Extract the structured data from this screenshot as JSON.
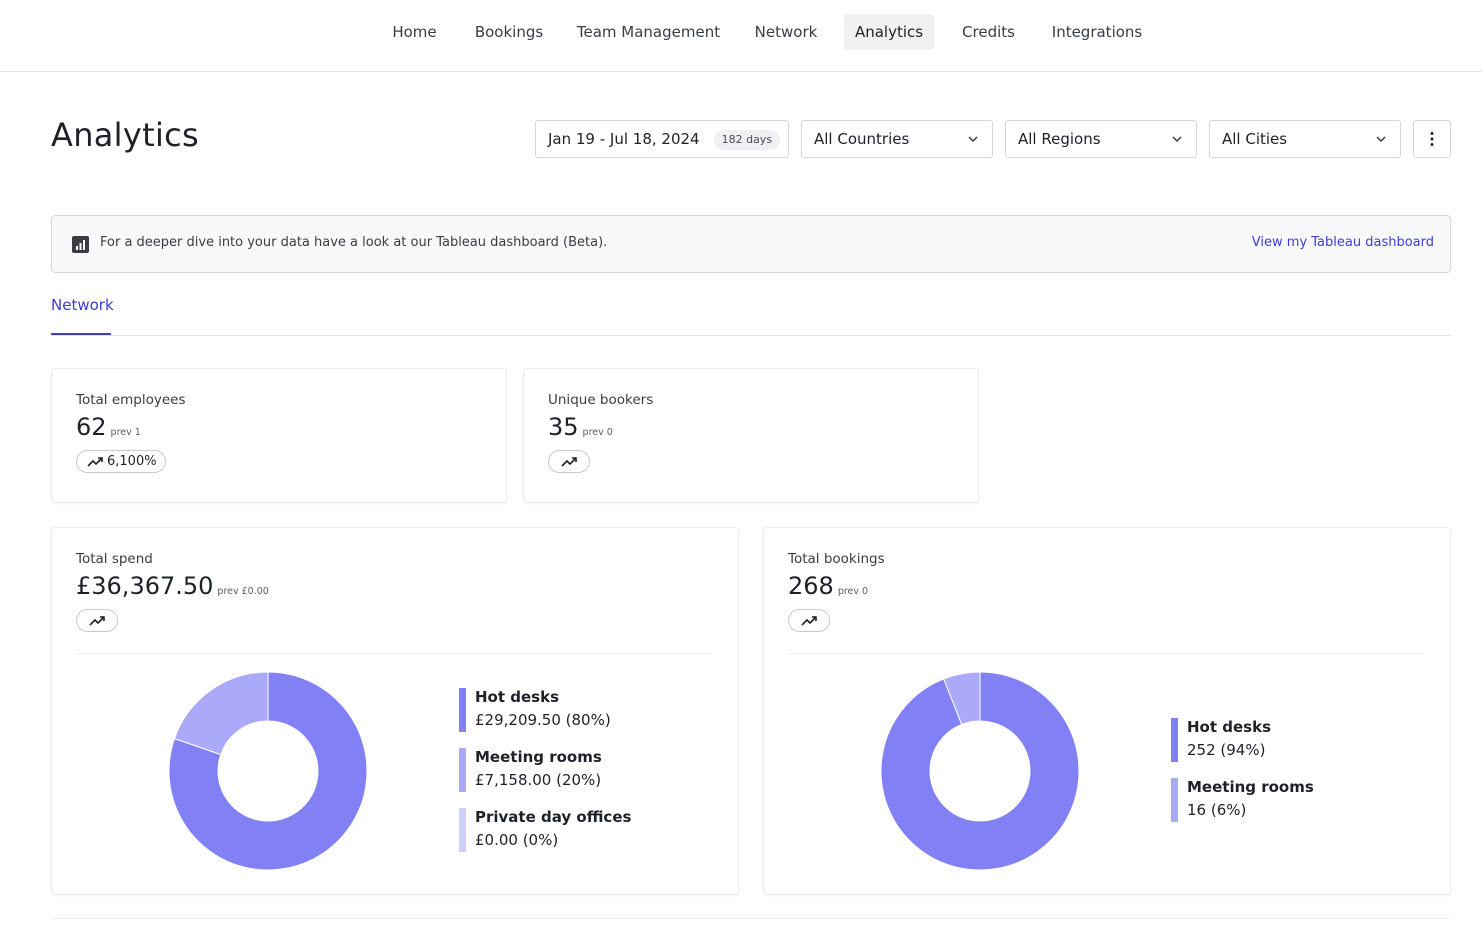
{
  "nav": {
    "items": [
      {
        "label": "Home"
      },
      {
        "label": "Bookings"
      },
      {
        "label": "Team Management"
      },
      {
        "label": "Network"
      },
      {
        "label": "Analytics"
      },
      {
        "label": "Credits"
      },
      {
        "label": "Integrations"
      }
    ],
    "active": "Analytics"
  },
  "page": {
    "title": "Analytics"
  },
  "filters": {
    "date_range": "Jan 19 - Jul 18, 2024",
    "days_badge": "182 days",
    "country": "All Countries",
    "region": "All Regions",
    "city": "All Cities"
  },
  "banner": {
    "text": "For a deeper dive into your data have a look at our Tableau dashboard (Beta).",
    "link": "View my Tableau dashboard",
    "icon": "bar-chart-icon"
  },
  "tabs": [
    {
      "label": "Network"
    }
  ],
  "stats": {
    "total_employees": {
      "label": "Total employees",
      "value": "62",
      "prev": "prev 1",
      "change": "6,100%"
    },
    "unique_bookers": {
      "label": "Unique bookers",
      "value": "35",
      "prev": "prev 0",
      "change": ""
    },
    "total_spend": {
      "label": "Total spend",
      "value": "£36,367.50",
      "prev": "prev £0.00",
      "change": ""
    },
    "total_bookings": {
      "label": "Total bookings",
      "value": "268",
      "prev": "prev 0",
      "change": ""
    }
  },
  "colors": {
    "accent": "#3c3cd6",
    "hot_desks": "#8280f5",
    "meeting_rooms": "#aaa9fa",
    "private_day_offices": "#d1d0fb"
  },
  "chart_data": [
    {
      "type": "pie",
      "donut": true,
      "categories": [
        "Hot desks",
        "Meeting rooms",
        "Private day offices"
      ],
      "values": [
        29209.5,
        7158.0,
        0.0
      ],
      "labels": [
        "£29,209.50 (80%)",
        "£7,158.00 (20%)",
        "£0.00 (0%)"
      ],
      "colors": [
        "#8280f5",
        "#aaa9fa",
        "#d1d0fb"
      ],
      "legend": "right"
    },
    {
      "type": "pie",
      "donut": true,
      "categories": [
        "Hot desks",
        "Meeting rooms"
      ],
      "values": [
        252,
        16
      ],
      "labels": [
        "252 (94%)",
        "16 (6%)"
      ],
      "colors": [
        "#8280f5",
        "#aaa9fa"
      ],
      "legend": "right"
    }
  ]
}
